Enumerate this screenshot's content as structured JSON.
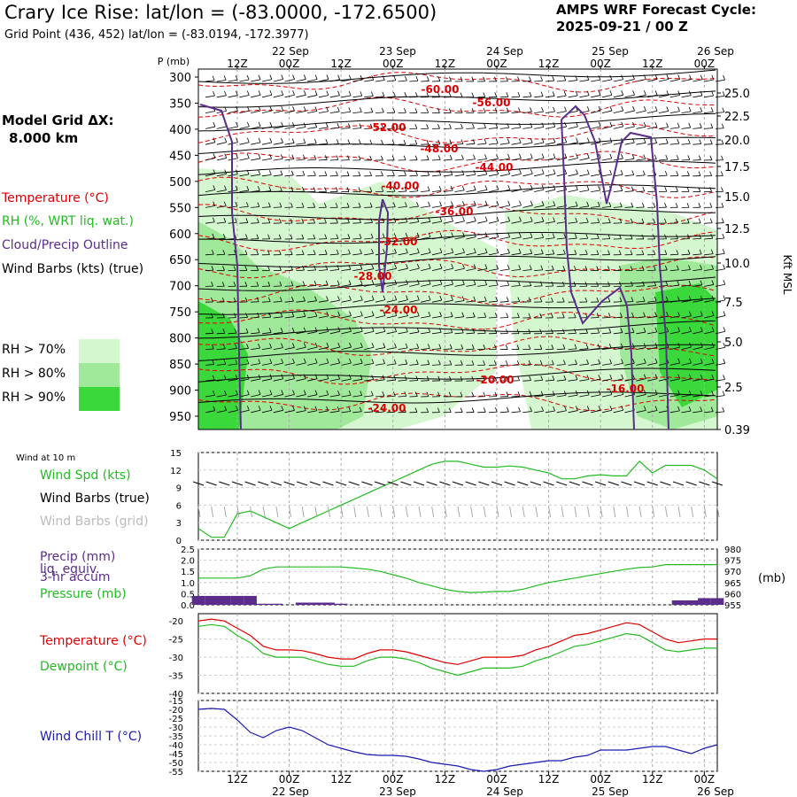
{
  "header": {
    "title": "Crary Ice Rise:  lat/lon = (-83.0000, -172.6500)",
    "subtitle": "Grid Point (436, 452) lat/lon = (-83.0194, -172.3977)",
    "cycle_line1": "AMPS WRF Forecast Cycle:",
    "cycle_line2": "2025-09-21 / 00  Z"
  },
  "sidebar": {
    "grid_dx_label": "Model Grid ΔX:",
    "grid_dx_value": "8.000 km",
    "legend_temperature": "Temperature (°C)",
    "legend_rh": "RH (%, WRT liq. wat.)",
    "legend_cloud": "Cloud/Precip Outline",
    "legend_wind": "Wind Barbs (kts) (true)",
    "rh_legend": [
      {
        "label": "RH > 70%",
        "color": "#d4f7cf"
      },
      {
        "label": "RH > 80%",
        "color": "#a0e89a"
      },
      {
        "label": "RH > 90%",
        "color": "#3bd83b"
      }
    ]
  },
  "colors": {
    "temperature": "#dd0000",
    "rh": "#22bb22",
    "cloud": "#5a2d8c",
    "wind_chill": "#1a1ab0",
    "precip": "#5a2d8c"
  },
  "chart_data": [
    {
      "type": "heatmap",
      "name": "cross-section",
      "y_axis_label": "P (mb)",
      "right_axis_label": "Kft MSL",
      "pressure_ticks": [
        "300",
        "350",
        "400",
        "450",
        "500",
        "550",
        "600",
        "650",
        "700",
        "750",
        "800",
        "850",
        "900",
        "950"
      ],
      "height_ticks": [
        "25.0",
        "22.5",
        "20.0",
        "17.5",
        "15.0",
        "12.5",
        "10.0",
        "7.5",
        "5.0",
        "2.5",
        "0.39"
      ],
      "time_ticks": [
        "12Z",
        "00Z",
        "12Z",
        "00Z",
        "12Z",
        "00Z",
        "12Z",
        "00Z",
        "12Z",
        "00Z"
      ],
      "date_labels": [
        "22 Sep",
        "23 Sep",
        "24 Sep",
        "25 Sep",
        "26 Sep"
      ],
      "temperature_labels": [
        "-60.00",
        "-56.00",
        "-52.00",
        "-48.00",
        "-44.00",
        "-40.00",
        "-36.00",
        "-32.00",
        "-28.00",
        "-24.00",
        "-20.00",
        "-16.00",
        "-24.00"
      ]
    },
    {
      "type": "line",
      "name": "wind-10m",
      "panel_title": "Wind at 10 m",
      "legend": [
        "Wind Spd (kts)",
        "Wind Barbs (true)",
        "Wind Barbs (grid)"
      ],
      "yticks": [
        "15",
        "12",
        "9",
        "6",
        "3",
        "0"
      ],
      "ylim": [
        0,
        15
      ],
      "x": [
        0,
        3,
        6,
        9,
        12,
        15,
        18,
        21,
        24,
        27,
        30,
        33,
        36,
        39,
        42,
        45,
        48,
        51,
        54,
        57,
        60,
        63,
        66,
        69,
        72,
        75,
        78,
        81,
        84,
        87,
        90,
        93,
        96,
        99,
        102,
        105,
        108,
        111,
        114,
        117,
        120
      ],
      "series": [
        {
          "name": "Wind Spd (kts)",
          "values": [
            2,
            0.5,
            0.5,
            4.5,
            5,
            4,
            3,
            2,
            3,
            4,
            5,
            6,
            7,
            8,
            9,
            10,
            11,
            12,
            13,
            13.5,
            13.5,
            13,
            12.5,
            12.5,
            12.7,
            12.5,
            12,
            11.5,
            10.5,
            10.5,
            11,
            11.2,
            11,
            11,
            13.5,
            11.5,
            12.8,
            12.8,
            12.8,
            12,
            10.5
          ]
        }
      ]
    },
    {
      "type": "line",
      "name": "precip-pressure",
      "legend": [
        "Precip (mm)",
        "liq. equiv.",
        "3-hr accum",
        "Pressure (mb)"
      ],
      "yticks_left": [
        "2.5",
        "2.0",
        "1.5",
        "1.0",
        "0.5",
        "0.0"
      ],
      "yticks_right": [
        "980",
        "975",
        "970",
        "965",
        "960",
        "955"
      ],
      "right_unit": "(mb)",
      "precip_ylim": [
        0,
        2.5
      ],
      "pressure_ylim": [
        955,
        980
      ],
      "x": [
        0,
        3,
        6,
        9,
        12,
        15,
        18,
        21,
        24,
        27,
        30,
        33,
        36,
        39,
        42,
        45,
        48,
        51,
        54,
        57,
        60,
        63,
        66,
        69,
        72,
        75,
        78,
        81,
        84,
        87,
        90,
        93,
        96,
        99,
        102,
        105,
        108,
        111,
        114,
        117,
        120
      ],
      "precip": [
        0.4,
        0.4,
        0.4,
        0.4,
        0.4,
        0.05,
        0.05,
        0,
        0.1,
        0.1,
        0.1,
        0.05,
        0,
        0,
        0,
        0,
        0,
        0,
        0,
        0,
        0,
        0,
        0,
        0,
        0,
        0,
        0,
        0,
        0,
        0,
        0,
        0,
        0,
        0,
        0,
        0,
        0,
        0.2,
        0.2,
        0.3,
        0.3
      ],
      "series": [
        {
          "name": "Pressure (mb)",
          "values": [
            967,
            967,
            967,
            967,
            968,
            971,
            972,
            972,
            972,
            972,
            972,
            972,
            971.5,
            971,
            970,
            968.5,
            967,
            965,
            963.5,
            962,
            961,
            960.5,
            960.7,
            961,
            961,
            962,
            963.5,
            965,
            966,
            967,
            968,
            969,
            970,
            971,
            971.7,
            972,
            973,
            973,
            973,
            973,
            973
          ]
        }
      ]
    },
    {
      "type": "line",
      "name": "temperature-dewpoint",
      "legend": [
        "Temperature (°C)",
        "Dewpoint (°C)"
      ],
      "yticks": [
        "-20",
        "-25",
        "-30",
        "-35",
        "-40"
      ],
      "ylim": [
        -40,
        -18
      ],
      "x": [
        0,
        3,
        6,
        9,
        12,
        15,
        18,
        21,
        24,
        27,
        30,
        33,
        36,
        39,
        42,
        45,
        48,
        51,
        54,
        57,
        60,
        63,
        66,
        69,
        72,
        75,
        78,
        81,
        84,
        87,
        90,
        93,
        96,
        99,
        102,
        105,
        108,
        111,
        114,
        117,
        120
      ],
      "series": [
        {
          "name": "Temperature (°C)",
          "values": [
            -20,
            -19.5,
            -20,
            -22,
            -24,
            -27,
            -28,
            -28,
            -28.2,
            -29,
            -30,
            -30.5,
            -30.5,
            -29,
            -28,
            -28,
            -28.5,
            -29.5,
            -30.5,
            -31.5,
            -32,
            -31,
            -30,
            -30,
            -30,
            -29.5,
            -28,
            -27,
            -25.5,
            -24,
            -23.5,
            -22.5,
            -21.5,
            -20.5,
            -21,
            -23,
            -25,
            -26,
            -25.5,
            -25,
            -25
          ]
        },
        {
          "name": "Dewpoint (°C)",
          "values": [
            -21.5,
            -21,
            -21.5,
            -24,
            -26,
            -29,
            -30,
            -30,
            -30,
            -31,
            -32,
            -32.5,
            -32.5,
            -31,
            -30,
            -30,
            -30.5,
            -31.5,
            -33,
            -34,
            -35,
            -34,
            -33,
            -33,
            -33,
            -32.5,
            -31,
            -30,
            -28.5,
            -27,
            -26.5,
            -25.5,
            -24.5,
            -23.5,
            -24,
            -26,
            -28,
            -28.5,
            -28,
            -27.5,
            -27.5
          ]
        }
      ]
    },
    {
      "type": "line",
      "name": "wind-chill",
      "legend": [
        "Wind Chill T (°C)"
      ],
      "yticks": [
        "-15",
        "-20",
        "-25",
        "-30",
        "-35",
        "-40",
        "-45",
        "-50",
        "-55"
      ],
      "ylim": [
        -55,
        -15
      ],
      "x": [
        0,
        3,
        6,
        9,
        12,
        15,
        18,
        21,
        24,
        27,
        30,
        33,
        36,
        39,
        42,
        45,
        48,
        51,
        54,
        57,
        60,
        63,
        66,
        69,
        72,
        75,
        78,
        81,
        84,
        87,
        90,
        93,
        96,
        99,
        102,
        105,
        108,
        111,
        114,
        117,
        120
      ],
      "series": [
        {
          "name": "Wind Chill T (°C)",
          "values": [
            -20,
            -19.5,
            -20,
            -26,
            -33,
            -36,
            -32,
            -30,
            -32,
            -36,
            -40,
            -42,
            -44,
            -45.5,
            -46,
            -46,
            -46.5,
            -48,
            -50,
            -51,
            -52,
            -54,
            -55,
            -54,
            -52,
            -51,
            -50,
            -49,
            -49,
            -47,
            -46,
            -43,
            -43,
            -43,
            -42,
            -41,
            -41,
            -43,
            -45,
            -42,
            -40
          ]
        }
      ]
    }
  ]
}
